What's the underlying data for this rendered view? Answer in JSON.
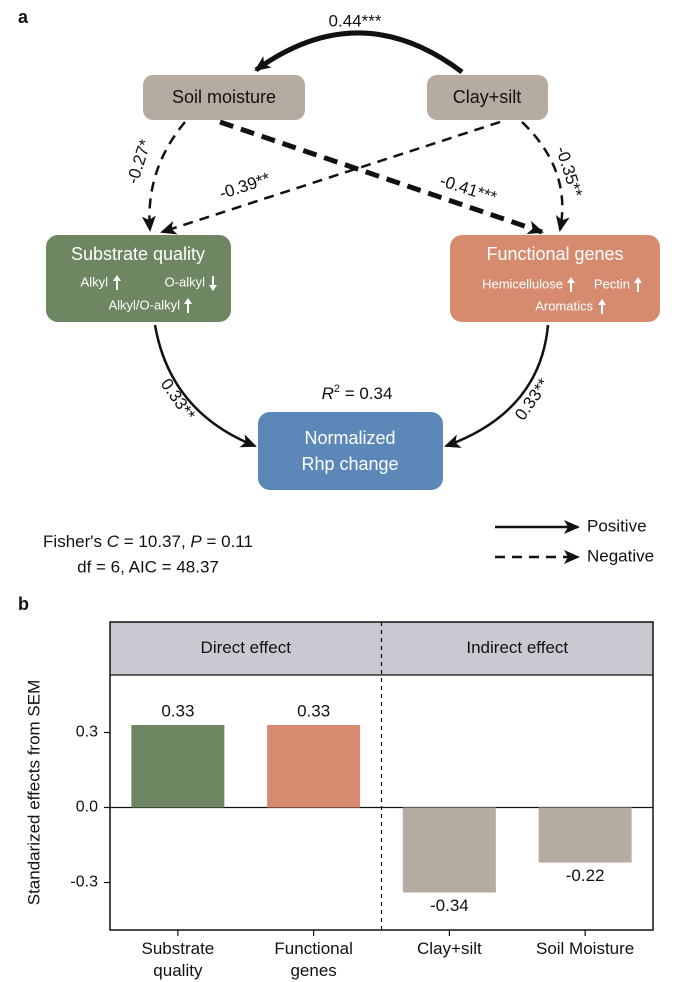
{
  "panel_a": {
    "label": "a",
    "nodes": {
      "soil": "Soil moisture",
      "clay": "Clay+silt",
      "substrate": {
        "title": "Substrate quality",
        "items": [
          "Alkyl",
          "O-alkyl",
          "Alkyl/O-alkyl"
        ]
      },
      "genes": {
        "title": "Functional genes",
        "items": [
          "Hemicellulose",
          "Pectin",
          "Aromatics"
        ]
      },
      "rhp": {
        "lines": [
          "Normalized",
          "Rhp change"
        ]
      }
    },
    "paths": {
      "clay_soil": "0.44***",
      "soil_substrate": "-0.27*",
      "clay_substrate": "-0.39**",
      "soil_genes": "-0.41***",
      "clay_genes": "-0.35**",
      "substrate_rhp": "0.33**",
      "genes_rhp": "0.33**"
    },
    "r_squared": [
      "R",
      "2",
      " = 0.34"
    ],
    "fit": [
      [
        "Fisher's ",
        "C",
        " = 10.37, ",
        "P",
        " = 0.11"
      ],
      "df = 6, AIC = 48.37"
    ],
    "legend": [
      "Positive",
      "Negative"
    ]
  },
  "chart_data": {
    "type": "bar",
    "label": "b",
    "ylabel": "Standarized effects from SEM",
    "panels": [
      "Direct effect",
      "Indirect effect"
    ],
    "categories": [
      "Substrate quality",
      "Functional genes",
      "Clay+silt",
      "Soil Moisture"
    ],
    "values": [
      0.33,
      0.33,
      -0.34,
      -0.22
    ],
    "colors": [
      "#6e8661",
      "#d68b6f",
      "#b5aba1",
      "#b5aba1"
    ],
    "ylim": [
      -0.49,
      0.53
    ],
    "yticks": [
      0.3,
      {
        "value": 0,
        "label": "0.0"
      },
      -0.3
    ]
  }
}
